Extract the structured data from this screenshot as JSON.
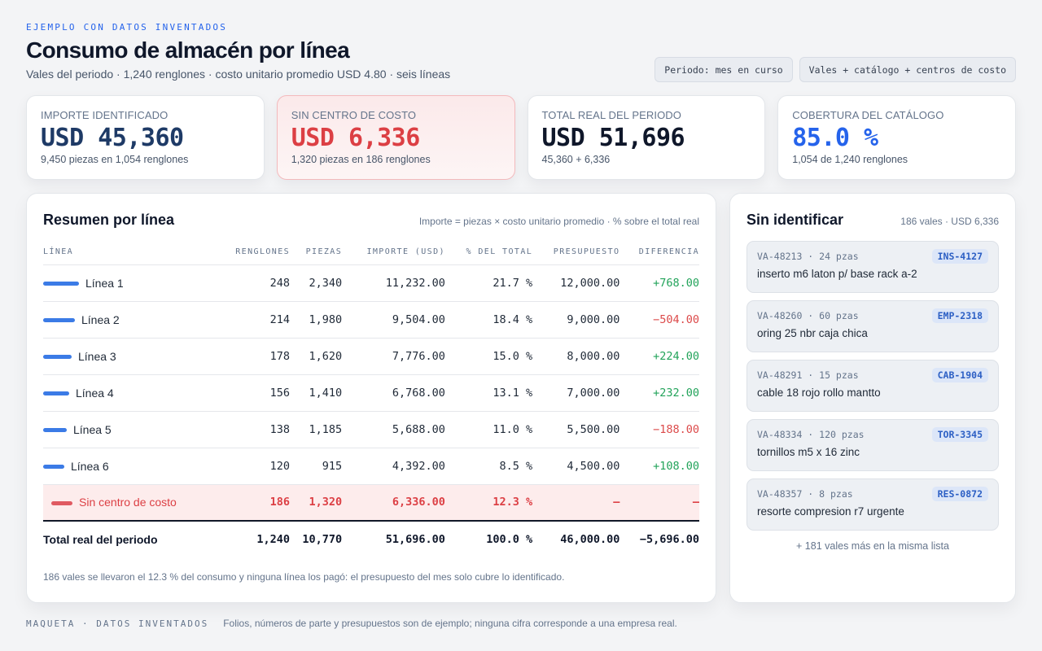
{
  "header": {
    "eyebrow": "EJEMPLO CON DATOS INVENTADOS",
    "title": "Consumo de almacén por línea",
    "subtitle": "Vales del periodo · 1,240 renglones · costo unitario promedio USD 4.80 · seis líneas",
    "chips": [
      "Periodo: mes en curso",
      "Vales + catálogo + centros de costo"
    ]
  },
  "kpis": [
    {
      "label": "IMPORTE IDENTIFICADO",
      "value": "USD 45,360",
      "sub": "9,450 piezas en 1,054 renglones",
      "color": "#1e3a66"
    },
    {
      "label": "SIN CENTRO DE COSTO",
      "value": "USD 6,336",
      "sub": "1,320 piezas en 186 renglones",
      "color": "#dc3f44"
    },
    {
      "label": "TOTAL REAL DEL PERIODO",
      "value": "USD 51,696",
      "sub": "45,360 + 6,336",
      "color": "#0f172a"
    },
    {
      "label": "COBERTURA DEL CATÁLOGO",
      "value": "85.0 %",
      "sub": "1,054 de 1,240 renglones",
      "color": "#2563eb"
    }
  ],
  "summary": {
    "title": "Resumen por línea",
    "note": "Importe = piezas × costo unitario promedio · % sobre el total real",
    "columns": [
      "LÍNEA",
      "RENGLONES",
      "PIEZAS",
      "IMPORTE (USD)",
      "% DEL TOTAL",
      "PRESUPUESTO",
      "DIFERENCIA"
    ],
    "rows": [
      {
        "line": "Línea 1",
        "renglones": "248",
        "piezas": "2,340",
        "importe": "11,232.00",
        "pct": "21.7 %",
        "presupuesto": "12,000.00",
        "diferencia": "+768.00",
        "share": 0.217
      },
      {
        "line": "Línea 2",
        "renglones": "214",
        "piezas": "1,980",
        "importe": "9,504.00",
        "pct": "18.4 %",
        "presupuesto": "9,000.00",
        "diferencia": "−504.00",
        "share": 0.184
      },
      {
        "line": "Línea 3",
        "renglones": "178",
        "piezas": "1,620",
        "importe": "7,776.00",
        "pct": "15.0 %",
        "presupuesto": "8,000.00",
        "diferencia": "+224.00",
        "share": 0.15
      },
      {
        "line": "Línea 4",
        "renglones": "156",
        "piezas": "1,410",
        "importe": "6,768.00",
        "pct": "13.1 %",
        "presupuesto": "7,000.00",
        "diferencia": "+232.00",
        "share": 0.131
      },
      {
        "line": "Línea 5",
        "renglones": "138",
        "piezas": "1,185",
        "importe": "5,688.00",
        "pct": "11.0 %",
        "presupuesto": "5,500.00",
        "diferencia": "−188.00",
        "share": 0.11
      },
      {
        "line": "Línea 6",
        "renglones": "120",
        "piezas": "915",
        "importe": "4,392.00",
        "pct": "8.5 %",
        "presupuesto": "4,500.00",
        "diferencia": "+108.00",
        "share": 0.085
      }
    ],
    "unassigned": {
      "line": "Sin centro de costo",
      "renglones": "186",
      "piezas": "1,320",
      "importe": "6,336.00",
      "pct": "12.3 %",
      "presupuesto": "—",
      "diferencia": "—"
    },
    "total": {
      "line": "Total real del periodo",
      "renglones": "1,240",
      "piezas": "10,770",
      "importe": "51,696.00",
      "pct": "100.0 %",
      "presupuesto": "46,000.00",
      "diferencia": "−5,696.00"
    },
    "footnote": "186 vales se llevaron el 12.3 % del consumo y ninguna línea los pagó: el presupuesto del mes solo cubre lo identificado."
  },
  "unidentified": {
    "title": "Sin identificar",
    "note": "186 vales · USD 6,336",
    "items": [
      {
        "meta": "VA-48213 · 24 pzas",
        "tag": "INS-4127",
        "desc": "inserto m6 laton p/ base rack a-2"
      },
      {
        "meta": "VA-48260 · 60 pzas",
        "tag": "EMP-2318",
        "desc": "oring 25 nbr caja chica"
      },
      {
        "meta": "VA-48291 · 15 pzas",
        "tag": "CAB-1904",
        "desc": "cable 18 rojo rollo mantto"
      },
      {
        "meta": "VA-48334 · 120 pzas",
        "tag": "TOR-3345",
        "desc": "tornillos m5 x 16 zinc"
      },
      {
        "meta": "VA-48357 · 8 pzas",
        "tag": "RES-0872",
        "desc": "resorte compresion r7 urgente"
      }
    ],
    "more": "+ 181 vales más en la misma lista"
  },
  "footer": {
    "tag": "MAQUETA · DATOS INVENTADOS",
    "text": "Folios, números de parte y presupuestos son de ejemplo; ninguna cifra corresponde a una empresa real."
  }
}
